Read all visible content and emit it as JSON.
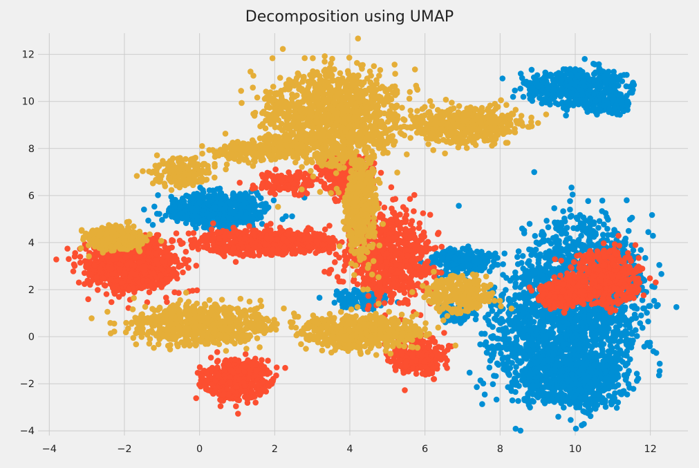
{
  "chart_data": {
    "type": "scatter",
    "title": "Decomposition using UMAP",
    "xlabel": "",
    "ylabel": "",
    "xlim": [
      -4.3,
      13.0
    ],
    "ylim": [
      -4.2,
      12.9
    ],
    "xticks": [
      -4,
      -2,
      0,
      2,
      4,
      6,
      8,
      10,
      12
    ],
    "yticks": [
      -4,
      -2,
      0,
      2,
      4,
      6,
      8,
      10,
      12
    ],
    "xtick_labels": [
      "−4",
      "−2",
      "0",
      "2",
      "4",
      "6",
      "8",
      "10",
      "12"
    ],
    "ytick_labels": [
      "−4",
      "−2",
      "0",
      "2",
      "4",
      "6",
      "8",
      "10",
      "12"
    ],
    "grid": true,
    "legend": "none",
    "colors": [
      "#008fd5",
      "#fc4f30",
      "#e5ae38"
    ],
    "series": [
      {
        "color": "#008fd5",
        "clusters": [
          {
            "cx": 10.2,
            "cy": 1.6,
            "rx": 1.9,
            "ry": 4.0,
            "n": 1400
          },
          {
            "cx": 8.8,
            "cy": 0.0,
            "rx": 1.4,
            "ry": 3.0,
            "n": 500
          },
          {
            "cx": 10.0,
            "cy": -1.8,
            "rx": 1.6,
            "ry": 1.4,
            "n": 600
          },
          {
            "cx": 10.0,
            "cy": 10.6,
            "rx": 1.5,
            "ry": 0.9,
            "n": 450
          },
          {
            "cx": 10.9,
            "cy": 9.8,
            "rx": 0.6,
            "ry": 0.5,
            "n": 80
          },
          {
            "cx": 0.5,
            "cy": 5.4,
            "rx": 1.5,
            "ry": 0.8,
            "n": 520
          },
          {
            "cx": 7.0,
            "cy": 3.2,
            "rx": 1.0,
            "ry": 0.6,
            "n": 220
          },
          {
            "cx": 4.3,
            "cy": 1.6,
            "rx": 0.8,
            "ry": 0.5,
            "n": 120
          },
          {
            "cx": 6.8,
            "cy": 1.0,
            "rx": 0.6,
            "ry": 0.5,
            "n": 80
          }
        ]
      },
      {
        "color": "#fc4f30",
        "clusters": [
          {
            "cx": -1.8,
            "cy": 3.1,
            "rx": 1.4,
            "ry": 1.3,
            "n": 900
          },
          {
            "cx": 1.7,
            "cy": 4.0,
            "rx": 2.2,
            "ry": 0.6,
            "n": 600
          },
          {
            "cx": 1.0,
            "cy": -1.8,
            "rx": 1.1,
            "ry": 1.0,
            "n": 420
          },
          {
            "cx": 5.0,
            "cy": 3.5,
            "rx": 1.3,
            "ry": 2.0,
            "n": 750
          },
          {
            "cx": 5.8,
            "cy": -0.8,
            "rx": 0.8,
            "ry": 1.0,
            "n": 260
          },
          {
            "cx": 3.9,
            "cy": 6.9,
            "rx": 0.8,
            "ry": 1.1,
            "n": 300
          },
          {
            "cx": 10.8,
            "cy": 2.5,
            "rx": 1.1,
            "ry": 1.3,
            "n": 450
          },
          {
            "cx": 9.6,
            "cy": 1.8,
            "rx": 0.7,
            "ry": 0.7,
            "n": 180
          },
          {
            "cx": 2.3,
            "cy": 6.5,
            "rx": 1.0,
            "ry": 0.6,
            "n": 120
          }
        ]
      },
      {
        "color": "#e5ae38",
        "clusters": [
          {
            "cx": 3.5,
            "cy": 9.3,
            "rx": 2.0,
            "ry": 2.3,
            "n": 1250
          },
          {
            "cx": 7.1,
            "cy": 9.0,
            "rx": 1.7,
            "ry": 0.9,
            "n": 450
          },
          {
            "cx": 0.0,
            "cy": 0.5,
            "rx": 2.2,
            "ry": 1.0,
            "n": 650
          },
          {
            "cx": 4.3,
            "cy": 0.2,
            "rx": 1.8,
            "ry": 0.8,
            "n": 550
          },
          {
            "cx": -2.3,
            "cy": 4.2,
            "rx": 0.9,
            "ry": 0.6,
            "n": 280
          },
          {
            "cx": 4.3,
            "cy": 5.5,
            "rx": 0.5,
            "ry": 2.5,
            "n": 420
          },
          {
            "cx": 6.9,
            "cy": 1.8,
            "rx": 1.0,
            "ry": 0.9,
            "n": 260
          },
          {
            "cx": -0.5,
            "cy": 7.0,
            "rx": 0.9,
            "ry": 0.7,
            "n": 170
          },
          {
            "cx": 1.5,
            "cy": 7.9,
            "rx": 1.2,
            "ry": 0.5,
            "n": 170
          }
        ]
      }
    ]
  }
}
